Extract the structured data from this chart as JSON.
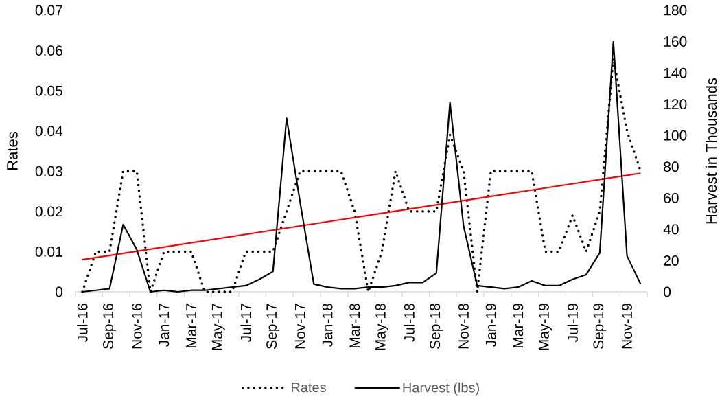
{
  "chart_data": {
    "type": "line",
    "ylabel": "Rates",
    "y2label": "Harvest in Thousands",
    "x": [
      "2016-07",
      "2016-08",
      "2016-09",
      "2016-10",
      "2016-11",
      "2016-12",
      "2017-01",
      "2017-02",
      "2017-03",
      "2017-04",
      "2017-05",
      "2017-06",
      "2017-07",
      "2017-08",
      "2017-09",
      "2017-10",
      "2017-11",
      "2017-12",
      "2018-01",
      "2018-02",
      "2018-03",
      "2018-04",
      "2018-05",
      "2018-06",
      "2018-07",
      "2018-08",
      "2018-09",
      "2018-10",
      "2018-11",
      "2018-12",
      "2019-01",
      "2019-02",
      "2019-03",
      "2019-04",
      "2019-05",
      "2019-06",
      "2019-07",
      "2019-08",
      "2019-09",
      "2019-10",
      "2019-11",
      "2019-12"
    ],
    "series": [
      {
        "name": "Rates",
        "color": "#000000",
        "line_style": "dotted",
        "values": [
          0,
          0.01,
          0.01,
          0.03,
          0.03,
          0,
          0.01,
          0.01,
          0.01,
          0,
          0,
          0,
          0.01,
          0.01,
          0.01,
          0.02,
          0.03,
          0.03,
          0.03,
          0.03,
          0.02,
          0,
          0.01,
          0.03,
          0.02,
          0.02,
          0.02,
          0.039,
          0.03,
          0,
          0.03,
          0.03,
          0.03,
          0.03,
          0.01,
          0.01,
          0.019,
          0.01,
          0.02,
          0.058,
          0.04,
          0.03
        ]
      },
      {
        "name": "Harvest (lbs)",
        "color": "#000000",
        "line_style": "solid",
        "axis": "y2",
        "values": [
          0,
          1,
          2,
          43,
          27,
          0,
          1,
          0,
          1,
          1,
          2,
          3,
          4,
          8,
          13,
          111,
          57,
          5,
          3,
          2,
          2,
          3,
          3,
          4,
          6,
          6,
          12,
          121,
          42,
          4,
          3,
          2,
          3,
          7,
          4,
          4,
          8,
          11,
          25,
          160,
          23,
          5
        ]
      },
      {
        "color": "#ff0000",
        "line_style": "solid",
        "x": [
          "2016-07",
          "2019-12"
        ],
        "values": [
          0.008,
          0.0295
        ]
      }
    ],
    "xlim": [
      "2016-06-16",
      "2019-12-16"
    ],
    "xticks": [
      {
        "value": "2016-06-16",
        "label": null
      },
      {
        "value": "2016-07",
        "label": "Jul-16"
      },
      {
        "value": "2016-08-16",
        "label": null
      },
      {
        "value": "2016-09",
        "label": "Sep-16"
      },
      {
        "value": "2016-10-16",
        "label": null
      },
      {
        "value": "2016-11",
        "label": "Nov-16"
      },
      {
        "value": "2016-12-16",
        "label": null
      },
      {
        "value": "2017-01",
        "label": "Jan-17"
      },
      {
        "value": "2017-02-15",
        "label": null
      },
      {
        "value": "2017-03",
        "label": "Mar-17"
      },
      {
        "value": "2017-04-16",
        "label": null
      },
      {
        "value": "2017-05",
        "label": "May-17"
      },
      {
        "value": "2017-06-16",
        "label": null
      },
      {
        "value": "2017-07",
        "label": "Jul-17"
      },
      {
        "value": "2017-08-16",
        "label": null
      },
      {
        "value": "2017-09",
        "label": "Sep-17"
      },
      {
        "value": "2017-10-16",
        "label": null
      },
      {
        "value": "2017-11",
        "label": "Nov-17"
      },
      {
        "value": "2017-12-16",
        "label": null
      },
      {
        "value": "2018-01",
        "label": "Jan-18"
      },
      {
        "value": "2018-02-15",
        "label": null
      },
      {
        "value": "2018-03",
        "label": "Mar-18"
      },
      {
        "value": "2018-04-16",
        "label": null
      },
      {
        "value": "2018-05",
        "label": "May-18"
      },
      {
        "value": "2018-06-16",
        "label": null
      },
      {
        "value": "2018-07",
        "label": "Jul-18"
      },
      {
        "value": "2018-08-16",
        "label": null
      },
      {
        "value": "2018-09",
        "label": "Sep-18"
      },
      {
        "value": "2018-10-16",
        "label": null
      },
      {
        "value": "2018-11",
        "label": "Nov-18"
      },
      {
        "value": "2018-12-16",
        "label": null
      },
      {
        "value": "2019-01",
        "label": "Jan-19"
      },
      {
        "value": "2019-02-15",
        "label": null
      },
      {
        "value": "2019-03",
        "label": "Mar-19"
      },
      {
        "value": "2019-04-16",
        "label": null
      },
      {
        "value": "2019-05",
        "label": "May-19"
      },
      {
        "value": "2019-06-16",
        "label": null
      },
      {
        "value": "2019-07",
        "label": "Jul-19"
      },
      {
        "value": "2019-08-16",
        "label": null
      },
      {
        "value": "2019-09",
        "label": "Sep-19"
      },
      {
        "value": "2019-10-16",
        "label": null
      },
      {
        "value": "2019-11",
        "label": "Nov-19"
      },
      {
        "value": "2019-12-16",
        "label": null
      }
    ],
    "ylim": [
      0,
      0.07
    ],
    "yticks": [
      0,
      0.01,
      0.02,
      0.03,
      0.04,
      0.05,
      0.06,
      0.07
    ],
    "y2lim": [
      0,
      180
    ],
    "y2ticks": [
      0,
      20,
      40,
      60,
      80,
      100,
      120,
      140,
      160,
      180
    ],
    "legend": "bottom"
  }
}
